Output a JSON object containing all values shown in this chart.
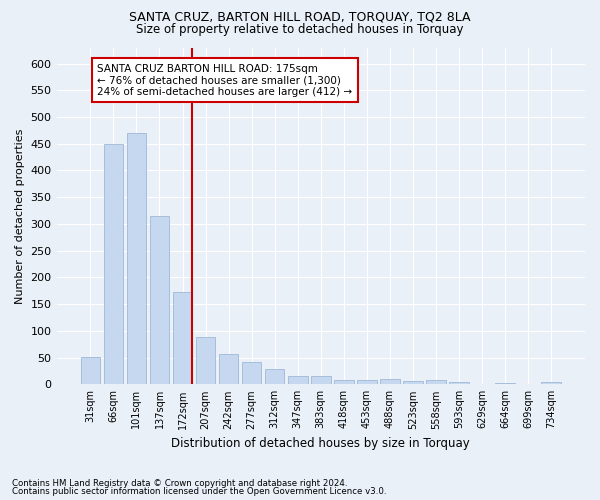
{
  "title1": "SANTA CRUZ, BARTON HILL ROAD, TORQUAY, TQ2 8LA",
  "title2": "Size of property relative to detached houses in Torquay",
  "xlabel": "Distribution of detached houses by size in Torquay",
  "ylabel": "Number of detached properties",
  "categories": [
    "31sqm",
    "66sqm",
    "101sqm",
    "137sqm",
    "172sqm",
    "207sqm",
    "242sqm",
    "277sqm",
    "312sqm",
    "347sqm",
    "383sqm",
    "418sqm",
    "453sqm",
    "488sqm",
    "523sqm",
    "558sqm",
    "593sqm",
    "629sqm",
    "664sqm",
    "699sqm",
    "734sqm"
  ],
  "values": [
    52,
    450,
    470,
    314,
    172,
    88,
    57,
    42,
    29,
    15,
    15,
    8,
    8,
    9,
    7,
    8,
    5,
    1,
    3,
    1,
    4
  ],
  "bar_color": "#c5d8f0",
  "bar_edgecolor": "#a0b8d8",
  "vline_color": "#cc0000",
  "annotation_text": "SANTA CRUZ BARTON HILL ROAD: 175sqm\n← 76% of detached houses are smaller (1,300)\n24% of semi-detached houses are larger (412) →",
  "annotation_boxcolor": "white",
  "annotation_edgecolor": "#cc0000",
  "ylim": [
    0,
    630
  ],
  "yticks": [
    0,
    50,
    100,
    150,
    200,
    250,
    300,
    350,
    400,
    450,
    500,
    550,
    600
  ],
  "footnote1": "Contains HM Land Registry data © Crown copyright and database right 2024.",
  "footnote2": "Contains public sector information licensed under the Open Government Licence v3.0.",
  "bg_color": "#eaf0f8",
  "plot_bg_color": "#eaf0f8"
}
